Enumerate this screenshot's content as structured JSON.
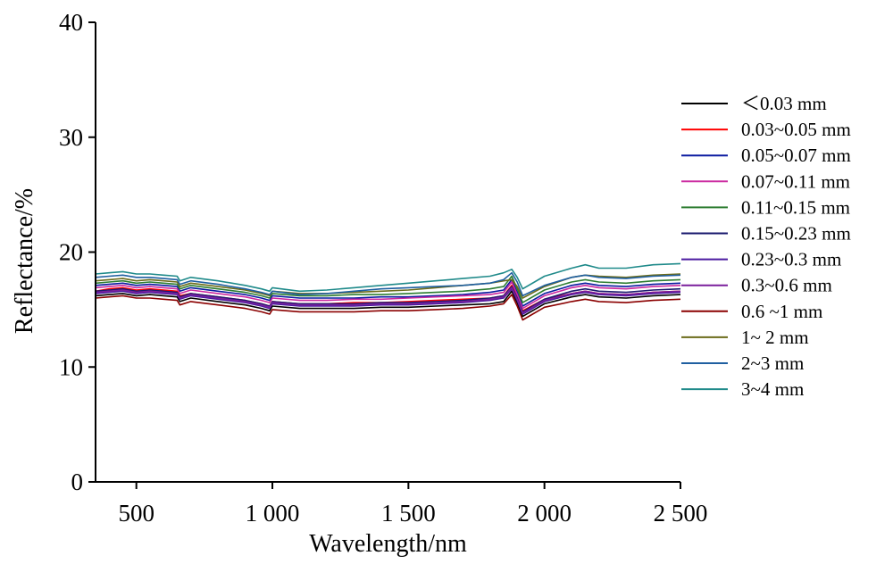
{
  "chart_data": {
    "type": "line",
    "title": "",
    "xlabel": "Wavelength/nm",
    "ylabel": "Reflectance/%",
    "xlim": [
      350,
      2500
    ],
    "ylim": [
      0,
      40
    ],
    "x_ticks": [
      500,
      1000,
      1500,
      2000,
      2500
    ],
    "x_tick_labels": [
      "500",
      "1 000",
      "1 500",
      "2 000",
      "2 500"
    ],
    "y_ticks": [
      0,
      10,
      20,
      30,
      40
    ],
    "y_tick_labels": [
      "0",
      "10",
      "20",
      "30",
      "40"
    ],
    "grid": false,
    "legend_position": "right",
    "x": [
      350,
      400,
      450,
      500,
      550,
      600,
      650,
      660,
      700,
      800,
      900,
      960,
      990,
      1000,
      1100,
      1200,
      1300,
      1400,
      1500,
      1600,
      1700,
      1800,
      1850,
      1880,
      1900,
      1920,
      2000,
      2100,
      2150,
      2200,
      2300,
      2400,
      2500
    ],
    "series": [
      {
        "name": "＜0.03 mm",
        "color": "#000000",
        "values": [
          16.2,
          16.3,
          16.4,
          16.2,
          16.3,
          16.2,
          16.1,
          15.7,
          16.0,
          15.7,
          15.4,
          15.1,
          14.9,
          15.3,
          15.1,
          15.1,
          15.1,
          15.2,
          15.2,
          15.3,
          15.4,
          15.5,
          15.7,
          16.6,
          15.6,
          14.4,
          15.5,
          16.1,
          16.3,
          16.1,
          16.0,
          16.2,
          16.3
        ]
      },
      {
        "name": "0.03~0.05 mm",
        "color": "#ff0000",
        "values": [
          16.6,
          16.8,
          16.9,
          16.7,
          16.8,
          16.7,
          16.6,
          16.2,
          16.4,
          16.1,
          15.8,
          15.5,
          15.3,
          15.7,
          15.5,
          15.5,
          15.6,
          15.6,
          15.7,
          15.8,
          15.9,
          16.0,
          16.2,
          17.1,
          16.1,
          14.9,
          15.9,
          16.4,
          16.6,
          16.4,
          16.3,
          16.5,
          16.6
        ]
      },
      {
        "name": "0.05~0.07 mm",
        "color": "#0a1aa0",
        "values": [
          17.1,
          17.2,
          17.3,
          17.1,
          17.2,
          17.1,
          17.0,
          16.6,
          16.9,
          16.6,
          16.3,
          16.0,
          15.8,
          16.2,
          16.0,
          16.0,
          16.0,
          16.1,
          16.1,
          16.2,
          16.3,
          16.5,
          16.7,
          17.6,
          16.5,
          15.3,
          16.4,
          17.1,
          17.3,
          17.1,
          17.0,
          17.2,
          17.3
        ]
      },
      {
        "name": "0.07~0.11 mm",
        "color": "#cc2aa0",
        "values": [
          16.9,
          17.0,
          17.1,
          16.9,
          17.0,
          16.9,
          16.8,
          16.4,
          16.7,
          16.4,
          16.1,
          15.8,
          15.6,
          16.0,
          15.8,
          15.8,
          15.9,
          15.9,
          16.0,
          16.1,
          16.2,
          16.3,
          16.5,
          17.4,
          16.3,
          15.1,
          16.2,
          16.9,
          17.1,
          16.9,
          16.8,
          17.0,
          17.1
        ]
      },
      {
        "name": "0.11~0.15  mm",
        "color": "#2e7d32",
        "values": [
          17.3,
          17.4,
          17.5,
          17.3,
          17.4,
          17.3,
          17.2,
          16.8,
          17.1,
          16.8,
          16.5,
          16.2,
          16.0,
          16.4,
          16.2,
          16.2,
          16.3,
          16.3,
          16.4,
          16.5,
          16.6,
          16.8,
          17.0,
          17.9,
          16.8,
          15.6,
          16.7,
          17.4,
          17.6,
          17.4,
          17.3,
          17.5,
          17.6
        ]
      },
      {
        "name": "0.15~0.23  mm",
        "color": "#1a1a6e",
        "values": [
          16.6,
          16.7,
          16.8,
          16.6,
          16.7,
          16.6,
          16.5,
          16.1,
          16.4,
          16.1,
          15.8,
          15.5,
          15.3,
          15.7,
          15.5,
          15.5,
          15.5,
          15.6,
          15.6,
          15.7,
          15.8,
          16.0,
          16.2,
          17.0,
          16.0,
          14.8,
          15.9,
          16.6,
          16.8,
          16.6,
          16.5,
          16.7,
          16.8
        ]
      },
      {
        "name": "0.23~0.3  mm",
        "color": "#4b1aa0",
        "values": [
          16.4,
          16.5,
          16.6,
          16.4,
          16.5,
          16.4,
          16.3,
          15.9,
          16.2,
          15.9,
          15.6,
          15.3,
          15.1,
          15.5,
          15.3,
          15.3,
          15.3,
          15.4,
          15.4,
          15.5,
          15.6,
          15.8,
          16.0,
          16.8,
          15.8,
          14.6,
          15.7,
          16.3,
          16.5,
          16.3,
          16.2,
          16.4,
          16.5
        ]
      },
      {
        "name": "0.3~0.6 mm",
        "color": "#7a1f9c",
        "values": [
          16.5,
          16.6,
          16.7,
          16.5,
          16.6,
          16.5,
          16.4,
          16.0,
          16.3,
          16.0,
          15.7,
          15.4,
          15.2,
          15.6,
          15.4,
          15.4,
          15.4,
          15.5,
          15.5,
          15.6,
          15.7,
          15.9,
          16.1,
          16.9,
          15.9,
          14.7,
          15.8,
          16.4,
          16.6,
          16.4,
          16.3,
          16.5,
          16.6
        ]
      },
      {
        "name": "0.6 ~1 mm",
        "color": "#8b0000",
        "values": [
          16.0,
          16.1,
          16.2,
          16.0,
          16.0,
          15.9,
          15.8,
          15.4,
          15.7,
          15.4,
          15.1,
          14.8,
          14.6,
          15.0,
          14.8,
          14.8,
          14.8,
          14.9,
          14.9,
          15.0,
          15.1,
          15.3,
          15.5,
          16.3,
          15.3,
          14.1,
          15.2,
          15.7,
          15.9,
          15.7,
          15.6,
          15.8,
          15.9
        ]
      },
      {
        "name": "1~ 2 mm",
        "color": "#6b6b1a",
        "values": [
          17.5,
          17.6,
          17.7,
          17.5,
          17.6,
          17.5,
          17.4,
          17.0,
          17.3,
          17.0,
          16.7,
          16.4,
          16.2,
          16.6,
          16.4,
          16.4,
          16.5,
          16.6,
          16.7,
          16.9,
          17.1,
          17.3,
          17.5,
          17.6,
          17.0,
          16.0,
          17.0,
          17.8,
          18.0,
          17.9,
          17.8,
          18.0,
          18.1
        ]
      },
      {
        "name": "2~3 mm",
        "color": "#1f5fa0",
        "values": [
          17.8,
          17.9,
          18.0,
          17.8,
          17.8,
          17.7,
          17.6,
          17.2,
          17.5,
          17.2,
          16.8,
          16.5,
          16.3,
          16.6,
          16.3,
          16.4,
          16.6,
          16.8,
          16.9,
          17.0,
          17.1,
          17.3,
          17.6,
          18.2,
          17.4,
          16.2,
          17.1,
          17.8,
          18.0,
          17.8,
          17.7,
          17.9,
          18.0
        ]
      },
      {
        "name": "3~4 mm",
        "color": "#1f8a8a",
        "values": [
          18.1,
          18.2,
          18.3,
          18.1,
          18.1,
          18.0,
          17.9,
          17.5,
          17.8,
          17.5,
          17.1,
          16.8,
          16.6,
          16.9,
          16.6,
          16.7,
          16.9,
          17.1,
          17.3,
          17.5,
          17.7,
          17.9,
          18.2,
          18.5,
          17.8,
          16.8,
          17.9,
          18.6,
          18.9,
          18.6,
          18.6,
          18.9,
          19.0
        ]
      }
    ]
  }
}
